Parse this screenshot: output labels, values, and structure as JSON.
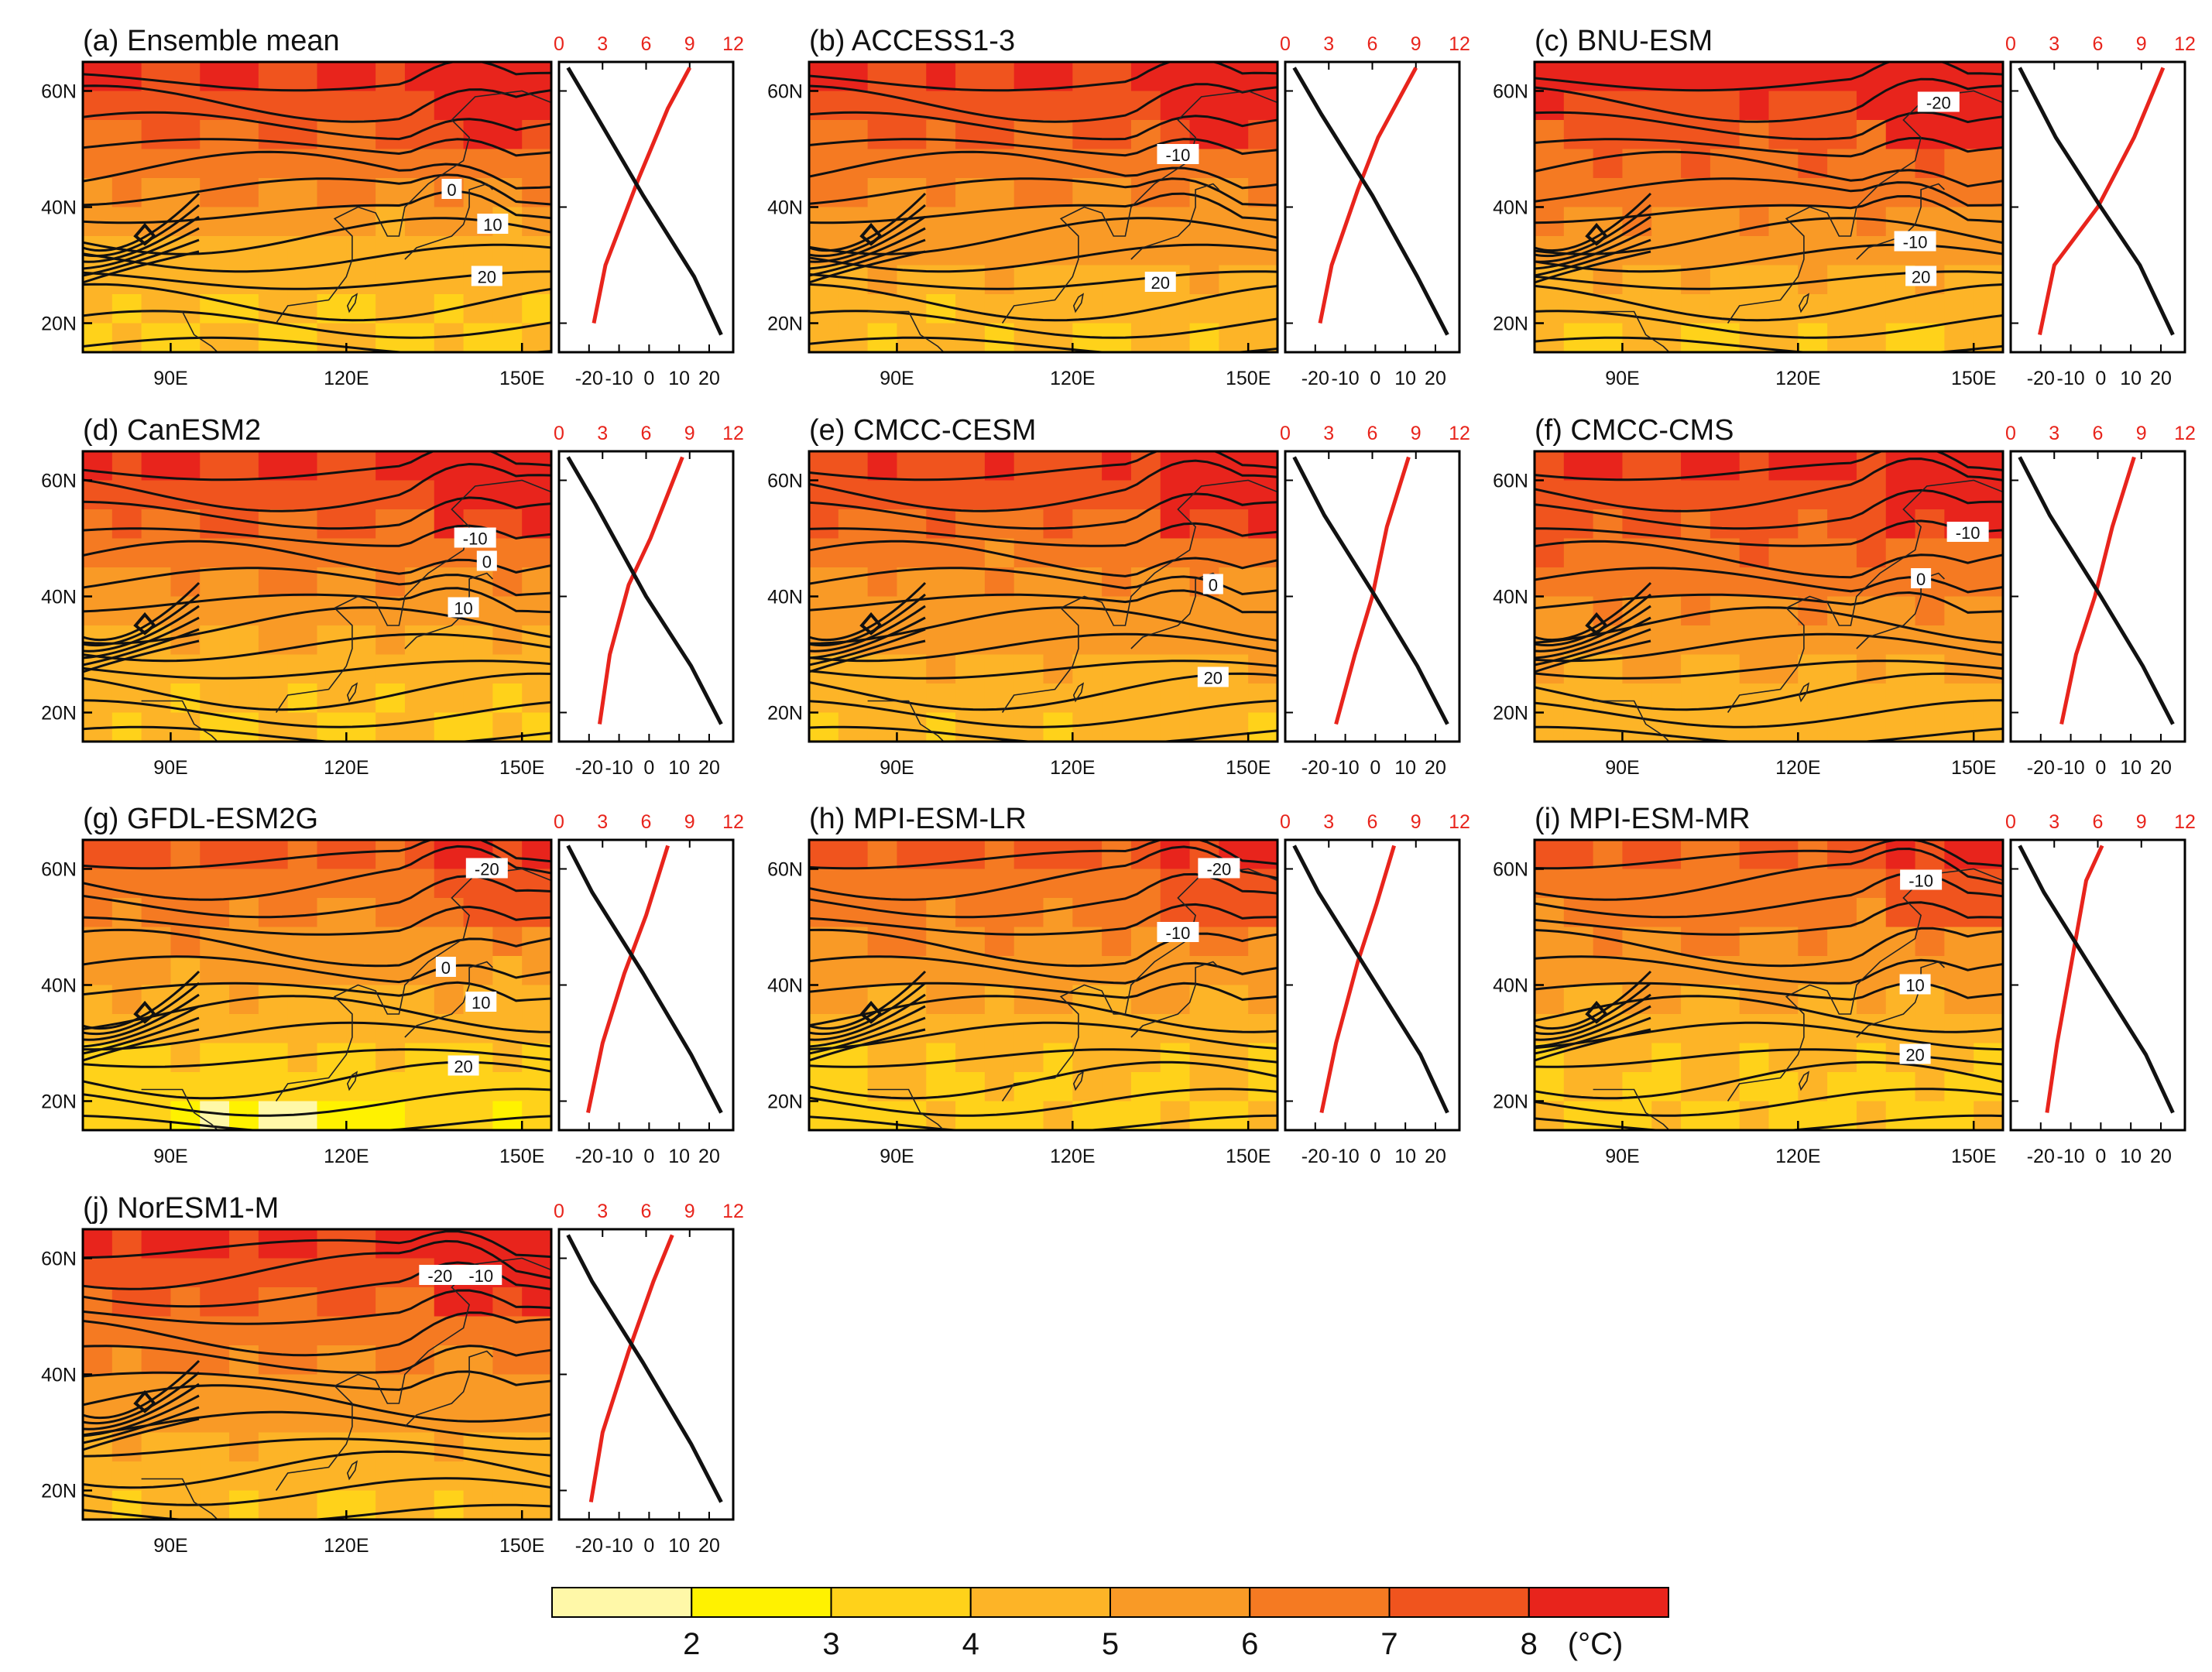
{
  "colors": {
    "levels": [
      "#fff8a8",
      "#fff200",
      "#ffd21a",
      "#fdb427",
      "#f99a26",
      "#f57a22",
      "#f0541e",
      "#e8241c"
    ],
    "contour": "#111111",
    "profile_red": "#e8241c",
    "profile_black": "#111111"
  },
  "map_axes": {
    "lat_ticks": [
      "20N",
      "40N",
      "60N"
    ],
    "lon_ticks": [
      "90E",
      "120E",
      "150E"
    ],
    "lat_values": [
      20,
      40,
      60
    ],
    "lon_values": [
      90,
      120,
      150
    ],
    "lat_range": [
      15,
      65
    ],
    "lon_range": [
      75,
      155
    ]
  },
  "profile_axes": {
    "top_ticks": [
      "0",
      "3",
      "6",
      "9",
      "12"
    ],
    "top_values": [
      0,
      3,
      6,
      9,
      12
    ],
    "bottom_ticks": [
      "-20",
      "-10",
      "0",
      "10",
      "20"
    ],
    "bottom_values": [
      -20,
      -10,
      0,
      10,
      20
    ],
    "top_range": [
      0,
      12
    ],
    "bottom_range": [
      -30,
      28
    ]
  },
  "colorbar": {
    "labels": [
      "2",
      "3",
      "4",
      "5",
      "6",
      "7",
      "8"
    ],
    "unit": "(°C)"
  },
  "chart_data": {
    "type": "heatmap",
    "panels": [
      {
        "title": "(a) Ensemble mean",
        "warming_base": 3.9,
        "north_warming": 8.4,
        "contour_labels": [
          {
            "text": "0",
            "lon": 138,
            "lat": 43
          },
          {
            "text": "10",
            "lon": 145,
            "lat": 37
          },
          {
            "text": "20",
            "lon": 144,
            "lat": 28
          }
        ],
        "profile_red": [
          [
            2.4,
            20
          ],
          [
            3.2,
            30
          ],
          [
            5.5,
            45
          ],
          [
            7.5,
            57
          ],
          [
            9.0,
            64
          ]
        ],
        "profile_black": [
          [
            24,
            18
          ],
          [
            15,
            28
          ],
          [
            -2,
            42
          ],
          [
            -19,
            57
          ],
          [
            -27,
            64
          ]
        ]
      },
      {
        "title": "(b) ACCESS1-3",
        "warming_base": 4.1,
        "north_warming": 8.3,
        "contour_labels": [
          {
            "text": "-10",
            "lon": 138,
            "lat": 49
          },
          {
            "text": "20",
            "lon": 135,
            "lat": 27
          }
        ],
        "profile_red": [
          [
            2.4,
            20
          ],
          [
            3.2,
            30
          ],
          [
            5.0,
            43
          ],
          [
            6.4,
            52
          ],
          [
            9.0,
            64
          ]
        ],
        "profile_black": [
          [
            24,
            18
          ],
          [
            14,
            28
          ],
          [
            -1,
            42
          ],
          [
            -18,
            56
          ],
          [
            -27,
            64
          ]
        ]
      },
      {
        "title": "(c) BNU-ESM",
        "warming_base": 4.1,
        "north_warming": 8.8,
        "contour_labels": [
          {
            "text": "-20",
            "lon": 144,
            "lat": 58
          },
          {
            "text": "-10",
            "lon": 140,
            "lat": 34
          },
          {
            "text": "20",
            "lon": 141,
            "lat": 28
          }
        ],
        "profile_red": [
          [
            2.0,
            18
          ],
          [
            3.0,
            30
          ],
          [
            6.0,
            40
          ],
          [
            8.5,
            52
          ],
          [
            10.5,
            64
          ]
        ],
        "profile_black": [
          [
            24,
            18
          ],
          [
            13,
            30
          ],
          [
            0,
            40
          ],
          [
            -15,
            52
          ],
          [
            -27,
            64
          ]
        ]
      },
      {
        "title": "(d) CanESM2",
        "warming_base": 4.0,
        "north_warming": 8.3,
        "contour_labels": [
          {
            "text": "-10",
            "lon": 142,
            "lat": 50
          },
          {
            "text": "0",
            "lon": 144,
            "lat": 46
          },
          {
            "text": "10",
            "lon": 140,
            "lat": 38
          }
        ],
        "profile_red": [
          [
            2.8,
            18
          ],
          [
            3.5,
            30
          ],
          [
            4.8,
            42
          ],
          [
            6.3,
            50
          ],
          [
            8.5,
            64
          ]
        ],
        "profile_black": [
          [
            24,
            18
          ],
          [
            14,
            28
          ],
          [
            -1,
            40
          ],
          [
            -18,
            56
          ],
          [
            -27,
            64
          ]
        ]
      },
      {
        "title": "(e) CMCC-CESM",
        "warming_base": 4.2,
        "north_warming": 7.9,
        "contour_labels": [
          {
            "text": "0",
            "lon": 144,
            "lat": 42
          },
          {
            "text": "20",
            "lon": 144,
            "lat": 26
          }
        ],
        "profile_red": [
          [
            3.5,
            18
          ],
          [
            4.8,
            30
          ],
          [
            6.0,
            40
          ],
          [
            7.0,
            52
          ],
          [
            8.5,
            64
          ]
        ],
        "profile_black": [
          [
            24,
            18
          ],
          [
            14,
            28
          ],
          [
            0,
            40
          ],
          [
            -17,
            54
          ],
          [
            -27,
            64
          ]
        ]
      },
      {
        "title": "(f) CMCC-CMS",
        "warming_base": 4.4,
        "north_warming": 8.5,
        "contour_labels": [
          {
            "text": "-10",
            "lon": 149,
            "lat": 51
          },
          {
            "text": "0",
            "lon": 141,
            "lat": 43
          }
        ],
        "profile_red": [
          [
            3.5,
            18
          ],
          [
            4.5,
            30
          ],
          [
            5.8,
            40
          ],
          [
            7.0,
            52
          ],
          [
            8.5,
            64
          ]
        ],
        "profile_black": [
          [
            24,
            18
          ],
          [
            14,
            28
          ],
          [
            0,
            40
          ],
          [
            -17,
            54
          ],
          [
            -27,
            64
          ]
        ]
      },
      {
        "title": "(g) GFDL-ESM2G",
        "warming_base": 3.2,
        "north_warming": 7.6,
        "contour_labels": [
          {
            "text": "-20",
            "lon": 144,
            "lat": 60
          },
          {
            "text": "0",
            "lon": 137,
            "lat": 43
          },
          {
            "text": "10",
            "lon": 143,
            "lat": 37
          },
          {
            "text": "20",
            "lon": 140,
            "lat": 26
          }
        ],
        "profile_red": [
          [
            2.0,
            18
          ],
          [
            3.0,
            30
          ],
          [
            4.5,
            42
          ],
          [
            6.0,
            52
          ],
          [
            7.5,
            64
          ]
        ],
        "profile_black": [
          [
            24,
            18
          ],
          [
            14,
            28
          ],
          [
            -2,
            42
          ],
          [
            -19,
            56
          ],
          [
            -27,
            64
          ]
        ]
      },
      {
        "title": "(h) MPI-ESM-LR",
        "warming_base": 3.8,
        "north_warming": 7.5,
        "contour_labels": [
          {
            "text": "-20",
            "lon": 145,
            "lat": 60
          },
          {
            "text": "-10",
            "lon": 138,
            "lat": 49
          }
        ],
        "profile_red": [
          [
            2.5,
            18
          ],
          [
            3.5,
            30
          ],
          [
            5.0,
            44
          ],
          [
            6.3,
            54
          ],
          [
            7.5,
            64
          ]
        ],
        "profile_black": [
          [
            24,
            18
          ],
          [
            15,
            28
          ],
          [
            -2,
            42
          ],
          [
            -19,
            56
          ],
          [
            -27,
            64
          ]
        ]
      },
      {
        "title": "(i) MPI-ESM-MR",
        "warming_base": 3.8,
        "north_warming": 7.5,
        "contour_labels": [
          {
            "text": "-10",
            "lon": 141,
            "lat": 58
          },
          {
            "text": "10",
            "lon": 140,
            "lat": 40
          },
          {
            "text": "20",
            "lon": 140,
            "lat": 28
          }
        ],
        "profile_red": [
          [
            2.5,
            18
          ],
          [
            3.2,
            30
          ],
          [
            4.2,
            44
          ],
          [
            5.2,
            58
          ],
          [
            6.3,
            64
          ]
        ],
        "profile_black": [
          [
            24,
            18
          ],
          [
            15,
            28
          ],
          [
            -2,
            42
          ],
          [
            -19,
            56
          ],
          [
            -27,
            64
          ]
        ]
      },
      {
        "title": "(j) NorESM1-M",
        "warming_base": 4.1,
        "north_warming": 8.4,
        "contour_labels": [
          {
            "text": "-20",
            "lon": 136,
            "lat": 57
          },
          {
            "text": "-10",
            "lon": 143,
            "lat": 57
          }
        ],
        "profile_red": [
          [
            2.2,
            18
          ],
          [
            3.0,
            30
          ],
          [
            4.8,
            44
          ],
          [
            6.5,
            56
          ],
          [
            7.8,
            64
          ]
        ],
        "profile_black": [
          [
            24,
            18
          ],
          [
            14,
            28
          ],
          [
            -2,
            42
          ],
          [
            -19,
            56
          ],
          [
            -27,
            64
          ]
        ]
      }
    ]
  }
}
